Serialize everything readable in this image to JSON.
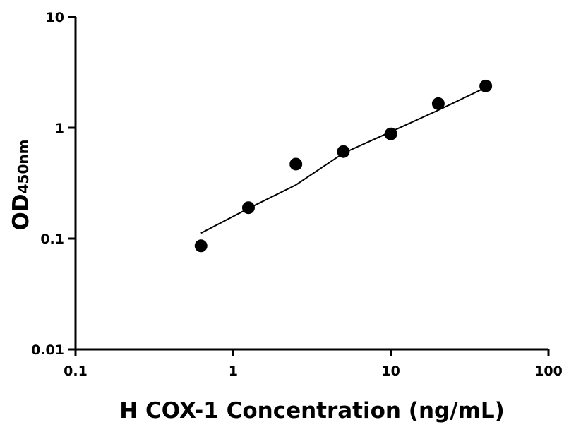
{
  "chart_data": {
    "type": "scatter",
    "x_label": "H COX-1 Concentration (ng/mL)",
    "y_label": "OD",
    "y_label_sub": "450nm",
    "x": [
      0.625,
      1.25,
      2.5,
      5,
      10,
      20,
      40
    ],
    "values": [
      0.086,
      0.19,
      0.47,
      0.61,
      0.88,
      1.65,
      2.38
    ],
    "color": "#000000",
    "fit": {
      "x": [
        0.625,
        1.25,
        2.5,
        5,
        10,
        20,
        40
      ],
      "values": [
        0.112,
        0.187,
        0.305,
        0.59,
        0.92,
        1.44,
        2.31
      ]
    },
    "xscale": "log",
    "yscale": "log",
    "xlim": [
      0.1,
      100
    ],
    "ylim": [
      0.01,
      10
    ],
    "xticks": [
      0.1,
      1,
      10,
      100
    ],
    "yticks": [
      0.01,
      0.1,
      1,
      10
    ]
  }
}
